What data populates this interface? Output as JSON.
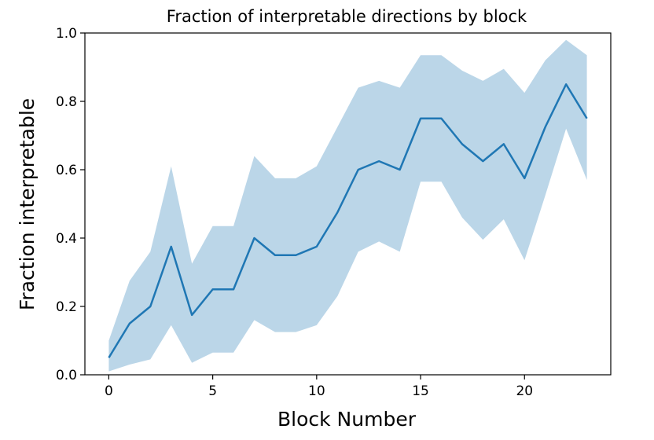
{
  "chart_data": {
    "type": "line",
    "title": "Fraction of interpretable directions by block",
    "xlabel": "Block Number",
    "ylabel": "Fraction interpretable",
    "xlim": [
      -1.15,
      24.15
    ],
    "ylim": [
      0.0,
      1.0
    ],
    "xticks": [
      0,
      5,
      10,
      15,
      20
    ],
    "yticks": [
      0.0,
      0.2,
      0.4,
      0.6,
      0.8,
      1.0
    ],
    "xtick_labels": [
      "0",
      "5",
      "10",
      "15",
      "20"
    ],
    "ytick_labels": [
      "0.0",
      "0.2",
      "0.4",
      "0.6",
      "0.8",
      "1.0"
    ],
    "grid": false,
    "line_color": "#1f77b4",
    "band_color": "#1f77b4",
    "band_opacity": 0.3,
    "x": [
      0,
      1,
      2,
      3,
      4,
      5,
      6,
      7,
      8,
      9,
      10,
      11,
      12,
      13,
      14,
      15,
      16,
      17,
      18,
      19,
      20,
      21,
      22,
      23
    ],
    "series": [
      {
        "values": [
          0.05,
          0.15,
          0.2,
          0.375,
          0.175,
          0.25,
          0.25,
          0.4,
          0.35,
          0.35,
          0.375,
          0.475,
          0.6,
          0.625,
          0.6,
          0.75,
          0.75,
          0.675,
          0.625,
          0.675,
          0.575,
          0.725,
          0.85,
          0.75
        ],
        "lower": [
          0.01,
          0.03,
          0.045,
          0.145,
          0.035,
          0.065,
          0.065,
          0.16,
          0.125,
          0.125,
          0.145,
          0.23,
          0.36,
          0.39,
          0.36,
          0.565,
          0.565,
          0.46,
          0.395,
          0.455,
          0.335,
          0.525,
          0.72,
          0.57
        ],
        "upper": [
          0.1,
          0.275,
          0.36,
          0.61,
          0.325,
          0.435,
          0.435,
          0.64,
          0.575,
          0.575,
          0.61,
          0.725,
          0.84,
          0.86,
          0.84,
          0.935,
          0.935,
          0.89,
          0.86,
          0.895,
          0.825,
          0.92,
          0.98,
          0.935
        ]
      }
    ]
  }
}
